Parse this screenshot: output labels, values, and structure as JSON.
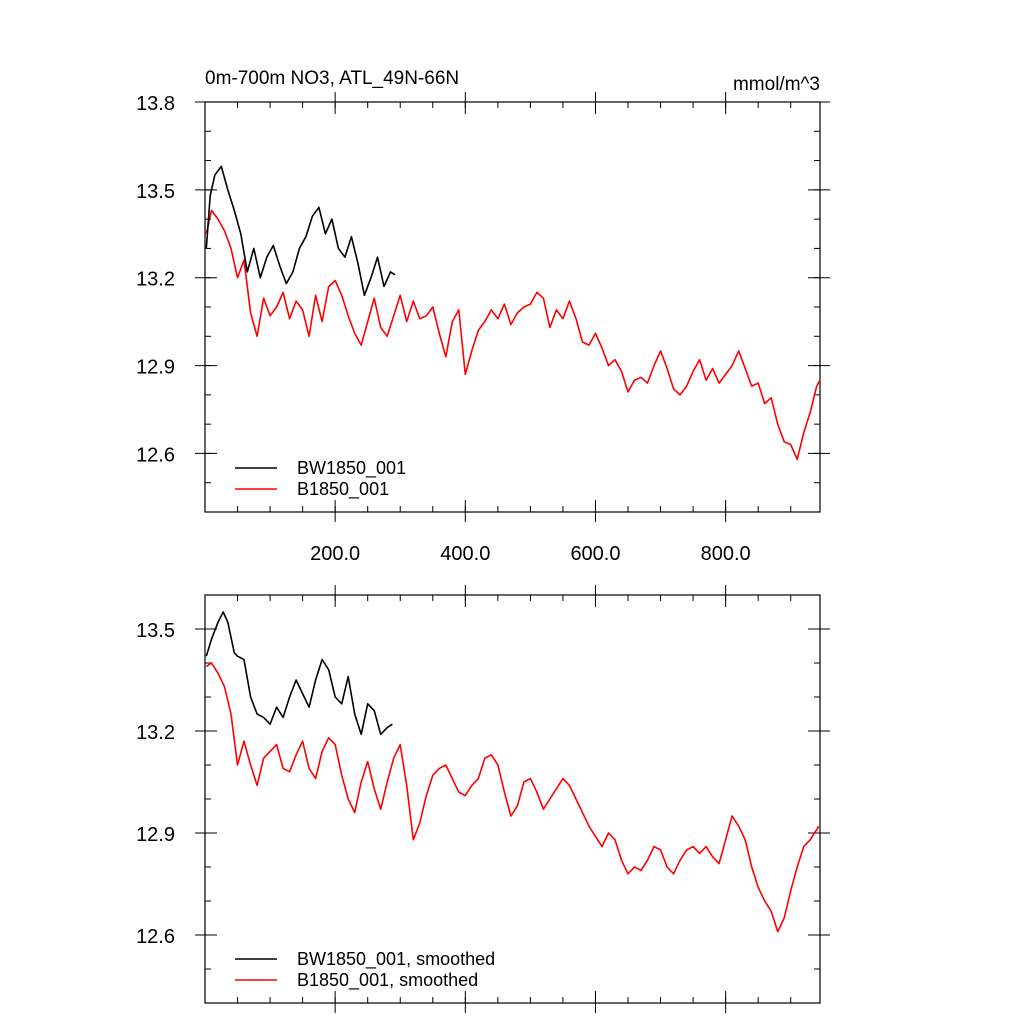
{
  "chart_data": [
    {
      "type": "line",
      "title_left": "0m-700m NO3, ATL_49N-66N",
      "title_right": "mmol/m^3",
      "xlim": [
        0,
        945
      ],
      "ylim": [
        12.4,
        13.8
      ],
      "x_ticks": [
        200,
        400,
        600,
        800
      ],
      "x_tick_labels": [
        "200.0",
        "400.0",
        "600.0",
        "800.0"
      ],
      "y_ticks": [
        12.6,
        12.9,
        13.2,
        13.5,
        13.8
      ],
      "y_tick_labels": [
        "12.6",
        "12.9",
        "13.2",
        "13.5",
        "13.8"
      ],
      "legend_position": "bottom-left",
      "series": [
        {
          "name": "BW1850_001",
          "color": "#000000",
          "x": [
            2,
            8,
            15,
            25,
            35,
            45,
            55,
            65,
            75,
            85,
            95,
            105,
            115,
            125,
            135,
            145,
            155,
            165,
            175,
            185,
            195,
            205,
            215,
            225,
            235,
            245,
            255,
            265,
            275,
            285,
            292
          ],
          "y": [
            13.3,
            13.48,
            13.55,
            13.58,
            13.5,
            13.43,
            13.35,
            13.22,
            13.3,
            13.2,
            13.27,
            13.31,
            13.24,
            13.18,
            13.22,
            13.3,
            13.34,
            13.41,
            13.44,
            13.35,
            13.4,
            13.3,
            13.27,
            13.34,
            13.25,
            13.14,
            13.2,
            13.27,
            13.17,
            13.22,
            13.21
          ]
        },
        {
          "name": "B1850_001",
          "color": "#ff0000",
          "x": [
            2,
            10,
            20,
            30,
            40,
            50,
            60,
            70,
            80,
            90,
            100,
            110,
            120,
            130,
            140,
            150,
            160,
            170,
            180,
            190,
            200,
            210,
            220,
            230,
            240,
            250,
            260,
            270,
            280,
            290,
            300,
            310,
            320,
            330,
            340,
            350,
            360,
            370,
            380,
            390,
            400,
            410,
            420,
            430,
            440,
            450,
            460,
            470,
            480,
            490,
            500,
            510,
            520,
            530,
            540,
            550,
            560,
            570,
            580,
            590,
            600,
            610,
            620,
            630,
            640,
            650,
            660,
            670,
            680,
            690,
            700,
            710,
            720,
            730,
            740,
            750,
            760,
            770,
            780,
            790,
            800,
            810,
            820,
            830,
            840,
            850,
            860,
            870,
            880,
            890,
            900,
            910,
            920,
            930,
            940,
            945
          ],
          "y": [
            13.35,
            13.43,
            13.4,
            13.36,
            13.3,
            13.2,
            13.26,
            13.08,
            13.0,
            13.13,
            13.07,
            13.1,
            13.15,
            13.06,
            13.12,
            13.09,
            13.0,
            13.14,
            13.05,
            13.17,
            13.19,
            13.14,
            13.07,
            13.01,
            12.97,
            13.05,
            13.13,
            13.03,
            13.0,
            13.07,
            13.14,
            13.05,
            13.12,
            13.06,
            13.07,
            13.1,
            13.01,
            12.93,
            13.05,
            13.09,
            12.87,
            12.95,
            13.02,
            13.05,
            13.09,
            13.06,
            13.11,
            13.04,
            13.08,
            13.1,
            13.11,
            13.15,
            13.13,
            13.03,
            13.09,
            13.06,
            13.12,
            13.06,
            12.98,
            12.97,
            13.01,
            12.96,
            12.9,
            12.92,
            12.88,
            12.81,
            12.85,
            12.86,
            12.84,
            12.9,
            12.95,
            12.89,
            12.82,
            12.8,
            12.83,
            12.88,
            12.92,
            12.85,
            12.89,
            12.84,
            12.87,
            12.9,
            12.95,
            12.89,
            12.83,
            12.84,
            12.77,
            12.79,
            12.7,
            12.64,
            12.63,
            12.58,
            12.67,
            12.74,
            12.83,
            12.85
          ]
        }
      ]
    },
    {
      "type": "line",
      "xlim": [
        0,
        945
      ],
      "ylim": [
        12.4,
        13.6
      ],
      "x_ticks": [
        200,
        400,
        600,
        800
      ],
      "y_ticks": [
        12.6,
        12.9,
        13.2,
        13.5
      ],
      "y_tick_labels": [
        "12.6",
        "12.9",
        "13.2",
        "13.5"
      ],
      "legend_position": "bottom-left",
      "series": [
        {
          "name": "BW1850_001, smoothed",
          "color": "#000000",
          "x": [
            2,
            10,
            20,
            28,
            35,
            45,
            50,
            60,
            70,
            80,
            90,
            100,
            110,
            120,
            130,
            140,
            150,
            160,
            170,
            180,
            190,
            200,
            210,
            220,
            230,
            240,
            250,
            260,
            270,
            280,
            288
          ],
          "y": [
            13.42,
            13.47,
            13.52,
            13.55,
            13.52,
            13.43,
            13.42,
            13.41,
            13.3,
            13.25,
            13.24,
            13.22,
            13.27,
            13.24,
            13.3,
            13.35,
            13.31,
            13.27,
            13.35,
            13.41,
            13.38,
            13.3,
            13.28,
            13.36,
            13.25,
            13.19,
            13.28,
            13.26,
            13.19,
            13.21,
            13.22
          ]
        },
        {
          "name": "B1850_001, smoothed",
          "color": "#ff0000",
          "x": [
            2,
            10,
            20,
            30,
            40,
            50,
            60,
            70,
            80,
            90,
            100,
            110,
            120,
            130,
            140,
            150,
            160,
            170,
            180,
            190,
            200,
            210,
            220,
            230,
            240,
            250,
            260,
            270,
            280,
            290,
            300,
            310,
            320,
            330,
            340,
            350,
            360,
            370,
            380,
            390,
            400,
            410,
            420,
            430,
            440,
            450,
            460,
            470,
            480,
            490,
            500,
            510,
            520,
            530,
            540,
            550,
            560,
            570,
            580,
            590,
            600,
            610,
            620,
            630,
            640,
            650,
            660,
            670,
            680,
            690,
            700,
            710,
            720,
            730,
            740,
            750,
            760,
            770,
            780,
            790,
            800,
            810,
            820,
            830,
            840,
            850,
            860,
            870,
            880,
            890,
            900,
            910,
            920,
            930,
            940,
            943
          ],
          "y": [
            13.39,
            13.4,
            13.37,
            13.33,
            13.25,
            13.1,
            13.17,
            13.1,
            13.04,
            13.12,
            13.14,
            13.16,
            13.09,
            13.08,
            13.13,
            13.17,
            13.09,
            13.06,
            13.14,
            13.18,
            13.16,
            13.07,
            13.0,
            12.96,
            13.05,
            13.11,
            13.03,
            12.97,
            13.05,
            13.12,
            13.16,
            13.04,
            12.88,
            12.93,
            13.01,
            13.07,
            13.09,
            13.1,
            13.06,
            13.02,
            13.01,
            13.04,
            13.06,
            13.12,
            13.13,
            13.1,
            13.02,
            12.95,
            12.98,
            13.05,
            13.06,
            13.02,
            12.97,
            13.0,
            13.03,
            13.06,
            13.04,
            13.0,
            12.96,
            12.92,
            12.89,
            12.86,
            12.9,
            12.88,
            12.82,
            12.78,
            12.8,
            12.79,
            12.82,
            12.86,
            12.85,
            12.8,
            12.78,
            12.82,
            12.85,
            12.86,
            12.84,
            12.86,
            12.83,
            12.81,
            12.88,
            12.95,
            12.92,
            12.88,
            12.8,
            12.74,
            12.7,
            12.67,
            12.61,
            12.65,
            12.73,
            12.8,
            12.86,
            12.88,
            12.91,
            12.92
          ]
        }
      ]
    }
  ]
}
